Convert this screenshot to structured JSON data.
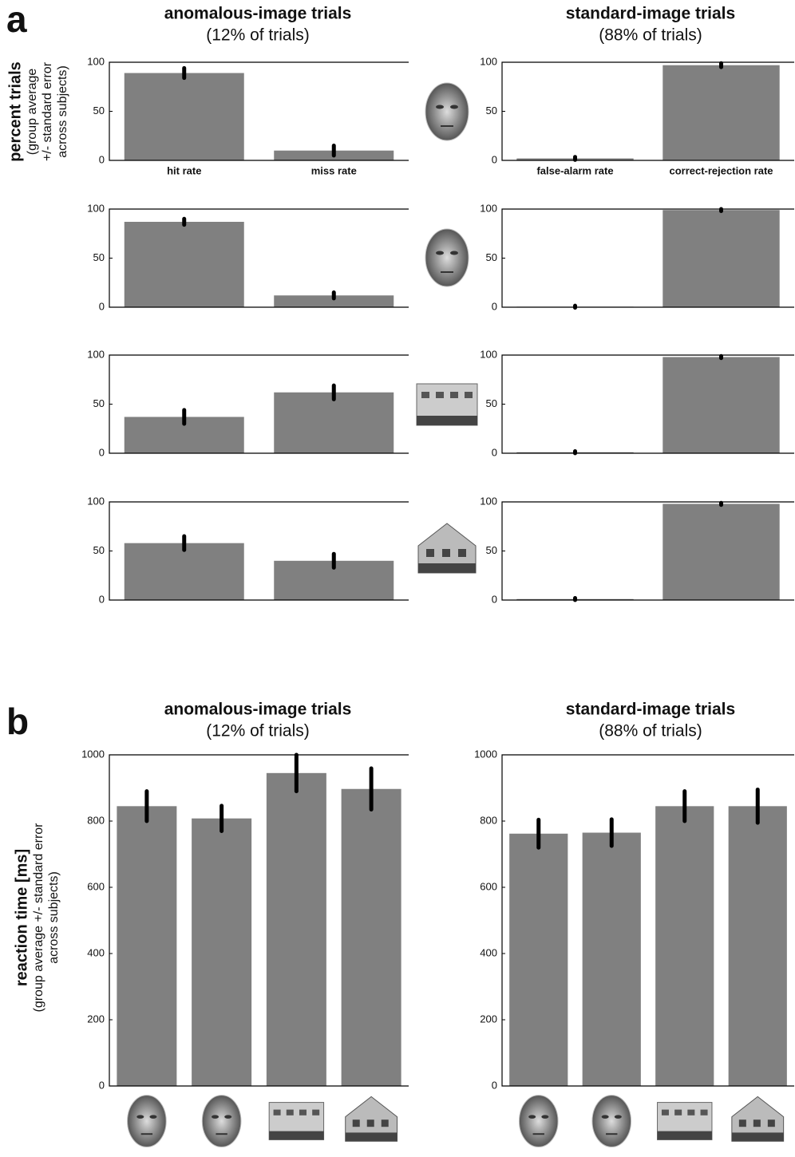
{
  "panel_a": {
    "label": "a",
    "columns": [
      {
        "title": "anomalous-image trials",
        "subtitle": "(12% of trials)"
      },
      {
        "title": "standard-image trials",
        "subtitle": "(88% of trials)"
      }
    ],
    "y_label": {
      "title": "percent trials",
      "lines": [
        "(group average",
        "+/- standard error",
        "across subjects)"
      ]
    }
  },
  "panel_b": {
    "label": "b",
    "columns": [
      {
        "title": "anomalous-image trials",
        "subtitle": "(12% of trials)"
      },
      {
        "title": "standard-image trials",
        "subtitle": "(88% of trials)"
      }
    ],
    "y_label": {
      "title": "reaction time [ms]",
      "lines": [
        "(group average +/- standard error",
        "across subjects)"
      ]
    }
  },
  "chart_data": [
    {
      "type": "bar",
      "categories": [
        "hit rate",
        "miss rate"
      ],
      "values": [
        89,
        10
      ],
      "errors": [
        5,
        5
      ],
      "ylim": [
        0,
        100
      ],
      "yticks": [
        0,
        50,
        100
      ],
      "color": "#808080"
    },
    {
      "type": "bar",
      "categories": [
        "false-alarm rate",
        "correct-rejection rate"
      ],
      "values": [
        2,
        97
      ],
      "errors": [
        1.5,
        2
      ],
      "ylim": [
        0,
        100
      ],
      "yticks": [
        0,
        50,
        100
      ],
      "color": "#808080"
    },
    {
      "type": "bar",
      "categories": [
        null,
        null
      ],
      "values": [
        87,
        12
      ],
      "errors": [
        3,
        3
      ],
      "ylim": [
        0,
        100
      ],
      "yticks": [
        0,
        50,
        100
      ],
      "color": "#808080"
    },
    {
      "type": "bar",
      "categories": [
        null,
        null
      ],
      "values": [
        0.5,
        99
      ],
      "errors": [
        1,
        1
      ],
      "ylim": [
        0,
        100
      ],
      "yticks": [
        0,
        50,
        100
      ],
      "color": "#808080"
    },
    {
      "type": "bar",
      "categories": [
        null,
        null
      ],
      "values": [
        37,
        62
      ],
      "errors": [
        7,
        7
      ],
      "ylim": [
        0,
        100
      ],
      "yticks": [
        0,
        50,
        100
      ],
      "color": "#808080"
    },
    {
      "type": "bar",
      "categories": [
        null,
        null
      ],
      "values": [
        1,
        98
      ],
      "errors": [
        1,
        1
      ],
      "ylim": [
        0,
        100
      ],
      "yticks": [
        0,
        50,
        100
      ],
      "color": "#808080"
    },
    {
      "type": "bar",
      "categories": [
        null,
        null
      ],
      "values": [
        58,
        40
      ],
      "errors": [
        7,
        7
      ],
      "ylim": [
        0,
        100
      ],
      "yticks": [
        0,
        50,
        100
      ],
      "color": "#808080"
    },
    {
      "type": "bar",
      "categories": [
        null,
        null
      ],
      "values": [
        1,
        98
      ],
      "errors": [
        1,
        1
      ],
      "ylim": [
        0,
        100
      ],
      "yticks": [
        0,
        50,
        100
      ],
      "color": "#808080"
    },
    {
      "type": "bar",
      "categories": [
        null,
        null,
        null,
        null
      ],
      "values": [
        845,
        808,
        945,
        897
      ],
      "errors": [
        45,
        38,
        55,
        62
      ],
      "ylim": [
        0,
        1000
      ],
      "yticks": [
        0,
        200,
        400,
        600,
        800,
        1000
      ],
      "color": "#808080"
    },
    {
      "type": "bar",
      "categories": [
        null,
        null,
        null,
        null
      ],
      "values": [
        762,
        765,
        845,
        845
      ],
      "errors": [
        42,
        40,
        45,
        50
      ],
      "ylim": [
        0,
        1000
      ],
      "yticks": [
        0,
        200,
        400,
        600,
        800,
        1000
      ],
      "color": "#808080"
    }
  ]
}
